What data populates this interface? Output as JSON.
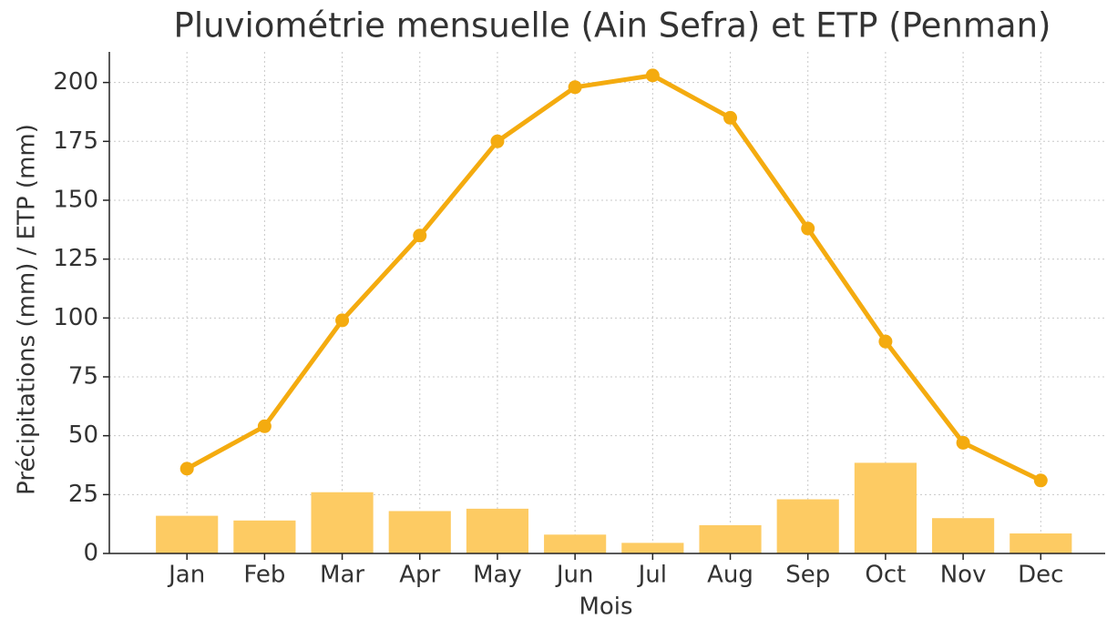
{
  "chart_data": {
    "type": "bar",
    "title": "Pluviométrie mensuelle (Ain Sefra) et ETP (Penman)",
    "xlabel": "Mois",
    "ylabel": "Précipitations (mm) / ETP (mm)",
    "categories": [
      "Jan",
      "Feb",
      "Mar",
      "Apr",
      "May",
      "Jun",
      "Jul",
      "Aug",
      "Sep",
      "Oct",
      "Nov",
      "Dec"
    ],
    "series": [
      {
        "type": "bar",
        "color": "#fdcb63",
        "values": [
          16,
          14,
          26,
          18,
          19,
          8,
          4.5,
          12,
          23,
          38.5,
          15,
          8.5
        ]
      },
      {
        "type": "line",
        "color": "#f4ab0f",
        "values": [
          36,
          54,
          99,
          135,
          175,
          198,
          203,
          185,
          138,
          90,
          47,
          31
        ]
      }
    ],
    "ylim": [
      0,
      213
    ],
    "yticks": [
      0,
      25,
      50,
      75,
      100,
      125,
      150,
      175,
      200
    ],
    "grid": true
  }
}
